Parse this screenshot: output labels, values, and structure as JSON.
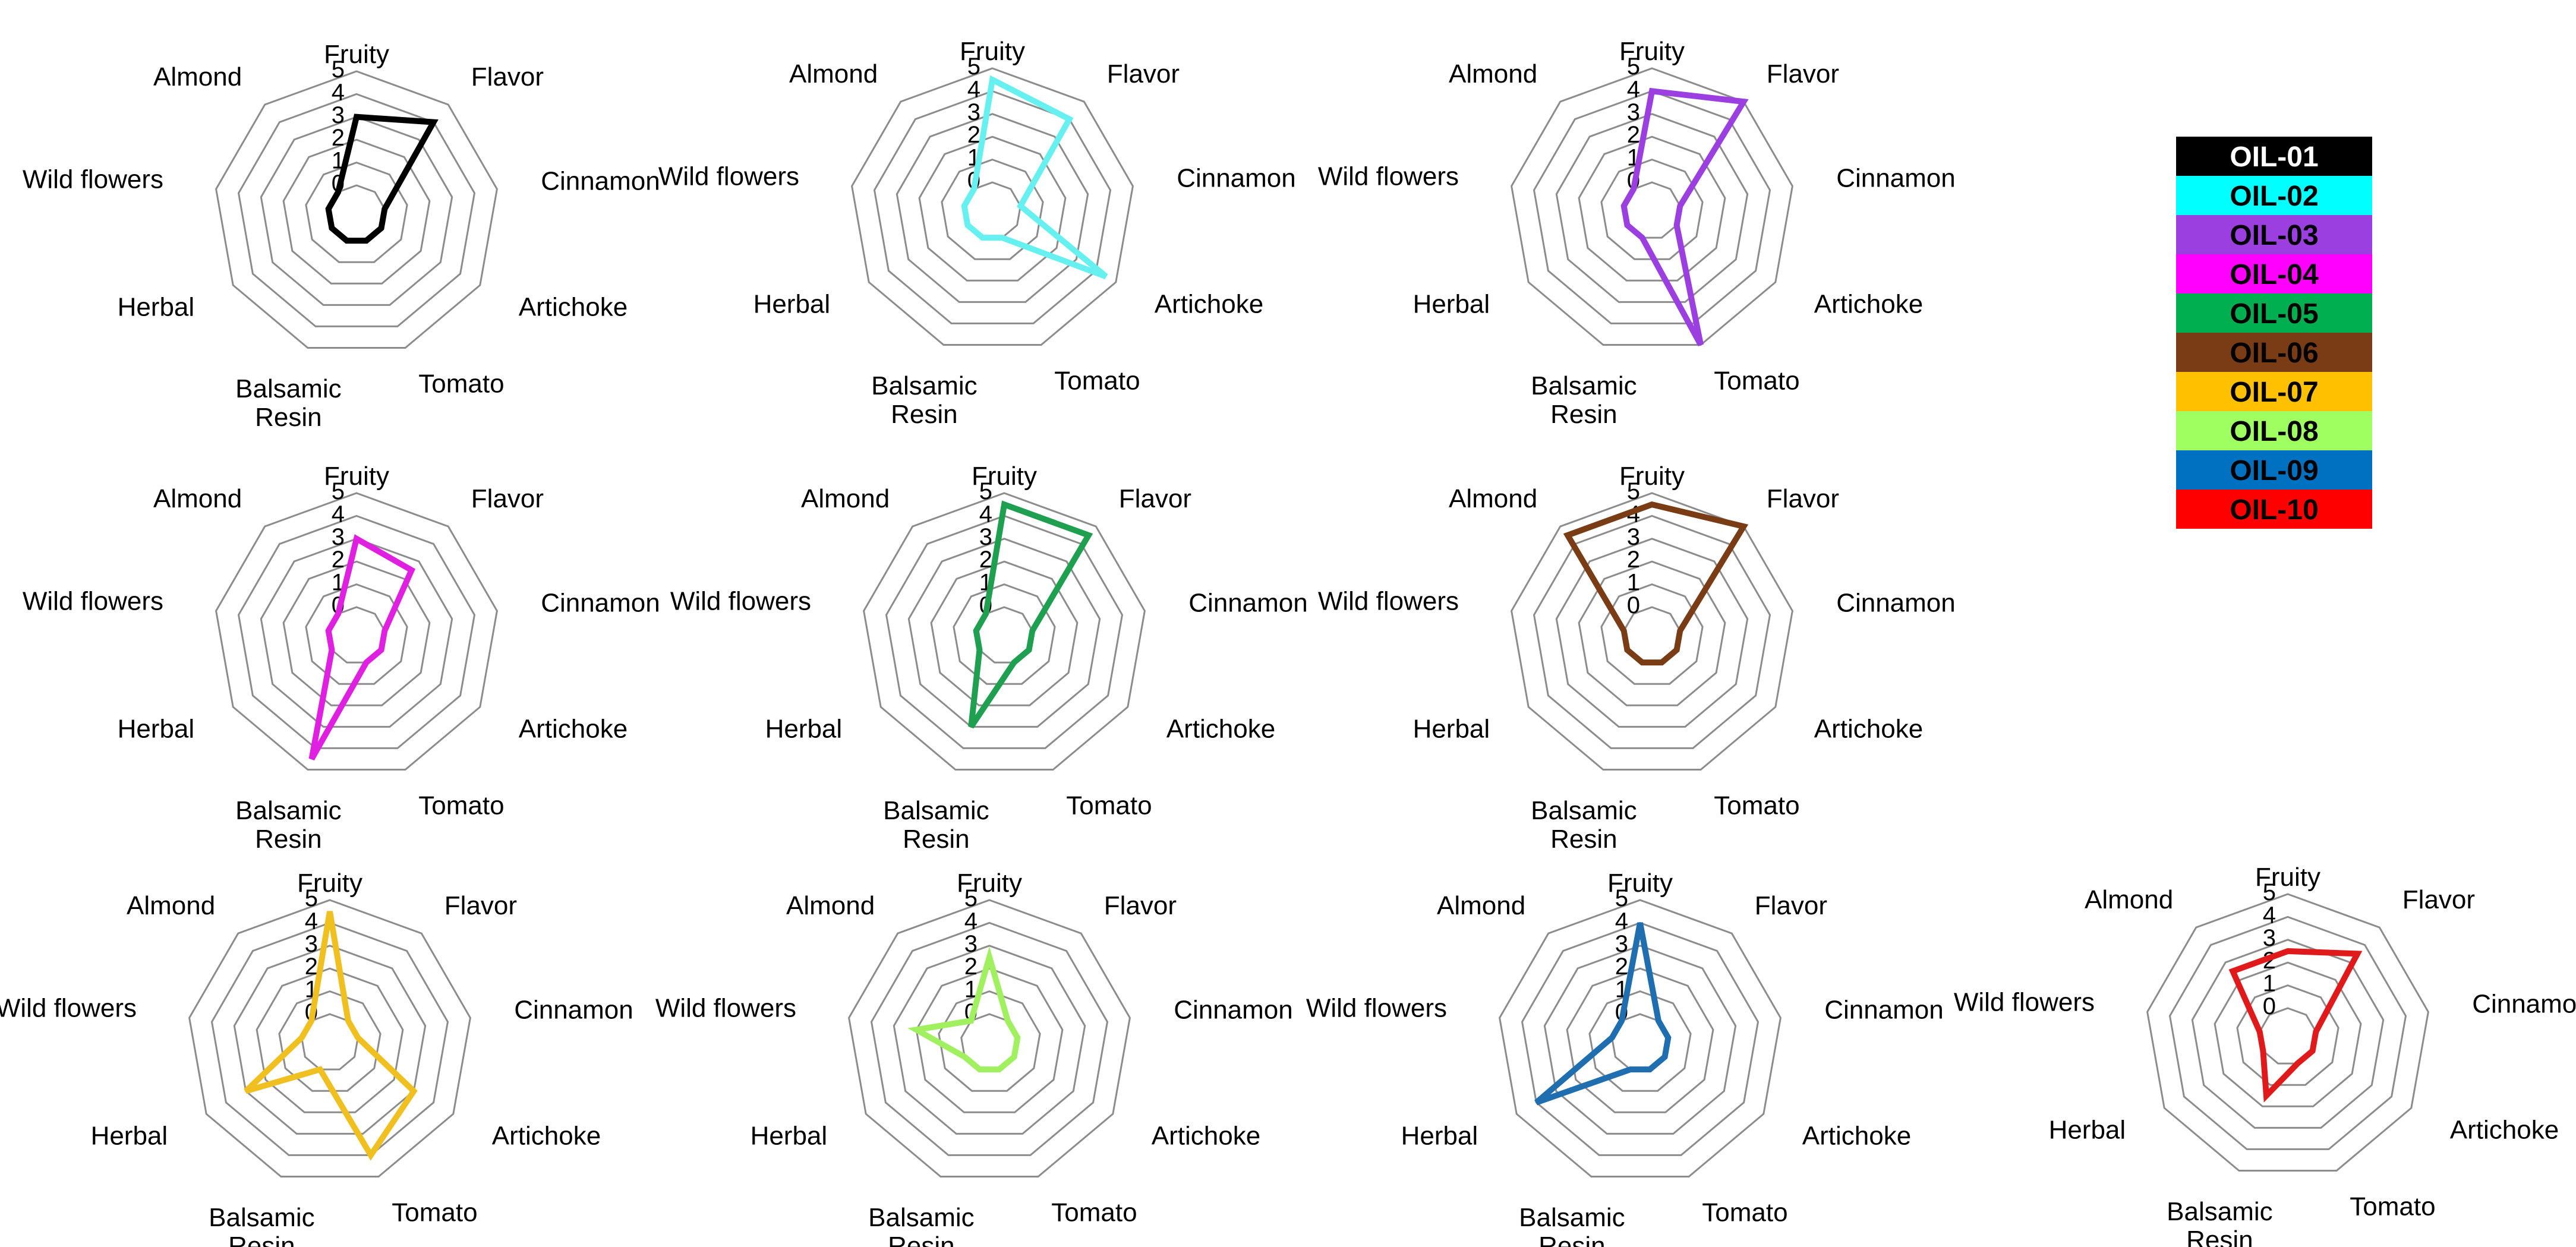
{
  "chart_data": {
    "type": "radar",
    "axes": [
      "Fruity",
      "Flavor",
      "Cinnamon",
      "Artichoke",
      "Tomato",
      "Balsamic Resin",
      "Herbal",
      "Wild flowers",
      "Almond"
    ],
    "ticks": [
      "0",
      "1",
      "2",
      "3",
      "4",
      "5"
    ],
    "range": [
      0,
      5
    ],
    "series": [
      {
        "name": "OIL-01",
        "color": "#000000",
        "values": [
          3,
          4,
          0,
          0,
          0,
          0,
          0,
          0,
          0
        ]
      },
      {
        "name": "OIL-02",
        "color": "#66f0f0",
        "values": [
          4.5,
          4,
          0,
          4.5,
          0,
          0,
          0,
          0,
          0
        ]
      },
      {
        "name": "OIL-03",
        "color": "#9b3fe0",
        "values": [
          4,
          5,
          0,
          0,
          5,
          0,
          0,
          0,
          0
        ]
      },
      {
        "name": "OIL-04",
        "color": "#e020e0",
        "values": [
          3,
          2.5,
          0,
          0,
          0,
          4.5,
          0,
          0,
          0
        ]
      },
      {
        "name": "OIL-05",
        "color": "#1fa050",
        "values": [
          4.5,
          4.5,
          0,
          0,
          0,
          3,
          0,
          0,
          0
        ]
      },
      {
        "name": "OIL-06",
        "color": "#7a3c14",
        "values": [
          4.5,
          5,
          0,
          0,
          0,
          0,
          0,
          0,
          4.5
        ]
      },
      {
        "name": "OIL-07",
        "color": "#f0c020",
        "values": [
          4.5,
          0,
          0,
          3,
          4,
          0,
          3,
          0,
          0
        ]
      },
      {
        "name": "OIL-08",
        "color": "#a0f060",
        "values": [
          2.5,
          0,
          0,
          0,
          0,
          0,
          0,
          2,
          0
        ]
      },
      {
        "name": "OIL-09",
        "color": "#1e6eb0",
        "values": [
          4,
          0,
          0,
          0,
          0,
          0,
          4,
          0,
          0
        ]
      },
      {
        "name": "OIL-10",
        "color": "#e01a1a",
        "values": [
          2.5,
          3.5,
          0,
          0,
          0,
          1.5,
          0,
          0,
          2.5
        ]
      }
    ]
  },
  "legend": {
    "items": [
      {
        "label": "OIL-01",
        "bg": "#000000",
        "fg": "#ffffff"
      },
      {
        "label": "OIL-02",
        "bg": "#00ffff",
        "fg": "#000000"
      },
      {
        "label": "OIL-03",
        "bg": "#9b3fe0",
        "fg": "#000000"
      },
      {
        "label": "OIL-04",
        "bg": "#ff00ff",
        "fg": "#000000"
      },
      {
        "label": "OIL-05",
        "bg": "#00b050",
        "fg": "#000000"
      },
      {
        "label": "OIL-06",
        "bg": "#7a3c14",
        "fg": "#000000"
      },
      {
        "label": "OIL-07",
        "bg": "#ffc000",
        "fg": "#000000"
      },
      {
        "label": "OIL-08",
        "bg": "#a0ff60",
        "fg": "#000000"
      },
      {
        "label": "OIL-09",
        "bg": "#0070c0",
        "fg": "#000000"
      },
      {
        "label": "OIL-10",
        "bg": "#ff0000",
        "fg": "#000000"
      }
    ]
  }
}
